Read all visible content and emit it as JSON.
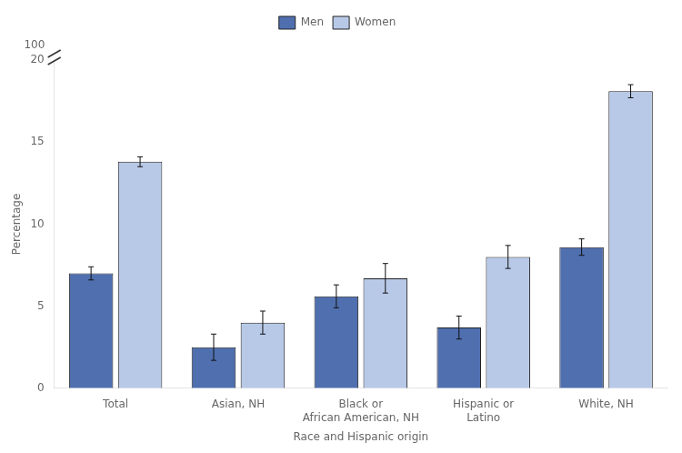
{
  "chart_data": {
    "type": "bar",
    "categories": [
      "Total",
      "Asian, NH",
      "Black or\nAfrican American, NH",
      "Hispanic or\nLatino",
      "White, NH"
    ],
    "series": [
      {
        "name": "Men",
        "color": "#4f6faf",
        "values": [
          7.0,
          2.5,
          5.6,
          3.7,
          8.6
        ],
        "errors": [
          0.4,
          0.8,
          0.7,
          0.7,
          0.5
        ]
      },
      {
        "name": "Women",
        "color": "#b8c9e8",
        "values": [
          13.8,
          4.0,
          6.7,
          8.0,
          18.1
        ],
        "errors": [
          0.3,
          0.7,
          0.9,
          0.7,
          0.4
        ]
      }
    ],
    "xlabel": "Race and Hispanic origin",
    "ylabel": "Percentage",
    "ylim": [
      0,
      20
    ],
    "yticks": [
      0,
      5,
      10,
      15,
      20
    ],
    "grid": false,
    "legend": "top",
    "annotations": [
      "100"
    ]
  }
}
